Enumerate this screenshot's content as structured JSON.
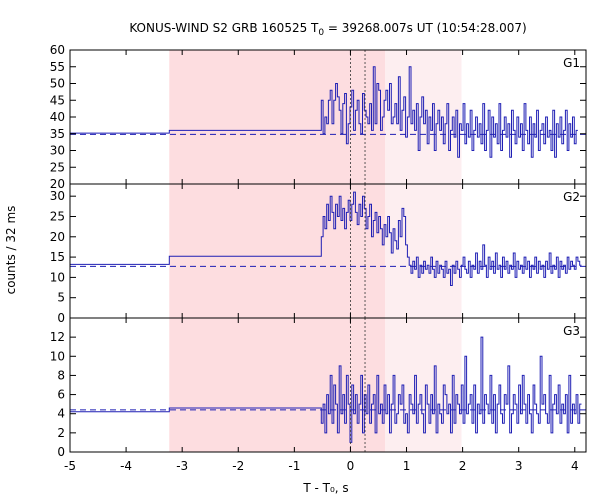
{
  "chart_data": {
    "type": "line",
    "title": {
      "prefix": "KONUS-WIND S2 GRB 160525 T",
      "subscript": "0",
      "suffix": " = 39268.007s UT (10:54:28.007)"
    },
    "xlabel": "T - T₀, s",
    "ylabel": "counts / 32 ms",
    "xlim": [
      -5.0,
      4.2
    ],
    "x_ticks": [
      -5,
      -4,
      -3,
      -2,
      -1,
      0,
      1,
      2,
      3,
      4
    ],
    "x_tick_labels": [
      "-5",
      "-4",
      "-3",
      "-2",
      "-1",
      "0",
      "1",
      "2",
      "3",
      "4"
    ],
    "shaded_regions": [
      {
        "name": "background-interval",
        "start": -3.23,
        "end": 0.62,
        "color": "#fddde0"
      },
      {
        "name": "extended-interval",
        "start": 0.62,
        "end": 1.98,
        "color": "#fdeef0"
      }
    ],
    "vertical_lines": [
      0.0,
      0.26
    ],
    "line_color": "#1f1fb4",
    "panels": [
      {
        "label": "G1",
        "ylim": [
          20,
          60
        ],
        "y_ticks": [
          20,
          25,
          30,
          35,
          40,
          45,
          50,
          55,
          60
        ],
        "y_tick_labels": [
          "20",
          "25",
          "30",
          "35",
          "40",
          "45",
          "50",
          "55",
          "60"
        ],
        "background_level": 34.8,
        "pre_steps": [
          [
            -5.0,
            35.2
          ],
          [
            -3.23,
            36.0
          ]
        ],
        "burst_start": -0.52,
        "points": [
          45,
          35,
          40,
          38,
          45,
          48,
          38,
          45,
          50,
          46,
          42,
          35,
          44,
          47,
          32,
          38,
          43,
          48,
          36,
          42,
          45,
          38,
          35,
          47,
          42,
          40,
          38,
          44,
          36,
          55,
          38,
          50,
          48,
          36,
          40,
          45,
          48,
          42,
          50,
          38,
          40,
          44,
          38,
          52,
          36,
          42,
          46,
          34,
          40,
          55,
          38,
          42,
          36,
          44,
          30,
          40,
          46,
          38,
          42,
          32,
          40,
          36,
          44,
          30,
          38,
          42,
          36,
          40,
          32,
          38,
          44,
          30,
          36,
          40,
          34,
          42,
          28,
          38,
          36,
          44,
          32,
          38,
          34,
          42,
          30,
          36,
          40,
          34,
          38,
          32,
          44,
          30,
          36,
          42,
          28,
          40,
          34,
          38,
          32,
          44,
          30,
          36,
          40,
          34,
          38,
          28,
          42,
          36,
          32,
          40,
          34,
          38,
          30,
          44,
          36,
          32,
          40,
          28,
          38,
          34,
          42,
          30,
          36,
          38,
          32,
          40,
          34,
          36,
          30,
          42,
          28,
          38,
          34,
          40,
          32,
          36,
          42,
          30,
          38,
          34,
          40,
          32,
          36
        ]
      },
      {
        "label": "G2",
        "ylim": [
          0,
          33
        ],
        "y_ticks": [
          0,
          5,
          10,
          15,
          20,
          25,
          30
        ],
        "y_tick_labels": [
          "0",
          "5",
          "10",
          "15",
          "20",
          "25",
          "30"
        ],
        "background_level": 12.7,
        "pre_steps": [
          [
            -5.0,
            13.2
          ],
          [
            -3.23,
            15.2
          ]
        ],
        "burst_start": -0.52,
        "points": [
          20,
          25,
          22,
          28,
          24,
          30,
          26,
          22,
          28,
          25,
          30,
          24,
          27,
          22,
          26,
          29,
          24,
          28,
          31,
          26,
          23,
          28,
          25,
          30,
          27,
          22,
          25,
          28,
          20,
          24,
          26,
          21,
          25,
          22,
          18,
          23,
          20,
          25,
          21,
          16,
          22,
          19,
          17,
          24,
          20,
          27,
          25,
          18,
          15,
          13,
          11,
          14,
          12,
          15,
          10,
          13,
          11,
          14,
          12,
          13,
          11,
          15,
          12,
          10,
          14,
          11,
          13,
          12,
          10,
          14,
          11,
          12,
          8,
          13,
          11,
          14,
          12,
          10,
          13,
          15,
          12,
          11,
          14,
          10,
          13,
          12,
          16,
          11,
          14,
          12,
          18,
          13,
          10,
          15,
          12,
          14,
          11,
          16,
          12,
          13,
          10,
          15,
          12,
          14,
          11,
          13,
          12,
          16,
          10,
          14,
          12,
          13,
          11,
          15,
          12,
          14,
          10,
          13,
          12,
          15,
          11,
          14,
          12,
          13,
          10,
          14,
          12,
          16,
          11,
          13,
          12,
          15,
          10,
          14,
          12,
          13,
          11,
          15,
          12,
          14,
          13,
          12,
          15,
          14,
          13
        ]
      },
      {
        "label": "G3",
        "ylim": [
          0,
          14
        ],
        "y_ticks": [
          0,
          2,
          4,
          6,
          8,
          10,
          12
        ],
        "y_tick_labels": [
          "0",
          "2",
          "4",
          "6",
          "8",
          "10",
          "12"
        ],
        "background_level": 4.4,
        "pre_steps": [
          [
            -5.0,
            4.2
          ],
          [
            -3.23,
            4.6
          ]
        ],
        "burst_start": -0.52,
        "points": [
          3,
          5,
          2,
          6,
          4,
          8,
          3,
          7,
          5,
          2,
          9,
          4,
          6,
          3,
          8,
          5,
          1,
          7,
          4,
          6,
          3,
          5,
          8,
          2,
          6,
          4,
          7,
          3,
          5,
          6,
          2,
          8,
          4,
          5,
          3,
          7,
          4,
          6,
          2,
          5,
          8,
          3,
          4,
          6,
          5,
          7,
          3,
          4,
          2,
          6,
          5,
          4,
          8,
          3,
          5,
          6,
          4,
          2,
          7,
          5,
          3,
          6,
          4,
          9,
          2,
          5,
          4,
          3,
          7,
          6,
          4,
          5,
          2,
          8,
          3,
          6,
          5,
          4,
          7,
          3,
          10,
          4,
          5,
          6,
          3,
          7,
          2,
          5,
          4,
          12,
          3,
          6,
          5,
          4,
          8,
          3,
          6,
          2,
          5,
          7,
          4,
          3,
          6,
          5,
          9,
          2,
          4,
          6,
          5,
          3,
          7,
          4,
          8,
          5,
          3,
          6,
          4,
          2,
          7,
          5,
          4,
          3,
          10,
          5,
          6,
          4,
          3,
          8,
          2,
          5,
          6,
          4,
          7,
          3,
          5,
          4,
          6,
          2,
          8,
          3,
          5,
          4,
          6,
          3,
          5
        ]
      }
    ]
  }
}
